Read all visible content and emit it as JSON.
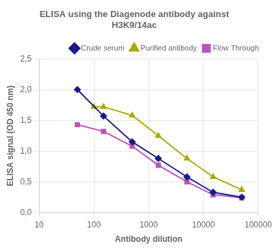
{
  "chart_data": {
    "type": "line",
    "title": "ELISA using the Diagenode antibody against\nH3K9/14ac",
    "xlabel": "Antibody dilution",
    "ylabel": "ELISA signal (OD 450 nm)",
    "log": "x",
    "xlim": [
      10,
      100000
    ],
    "ylim": [
      0.0,
      2.5
    ],
    "xticks": [
      10,
      100,
      1000,
      10000,
      100000
    ],
    "yticks": [
      {
        "value": 0.0,
        "label": "0,0"
      },
      {
        "value": 0.5,
        "label": "0,5"
      },
      {
        "value": 1.0,
        "label": "1,0"
      },
      {
        "value": 1.5,
        "label": "1,5"
      },
      {
        "value": 2.0,
        "label": "2,0"
      },
      {
        "value": 2.5,
        "label": "2,5"
      }
    ],
    "grid": true,
    "legend": "upper right",
    "series": [
      {
        "name": "Crude serum",
        "color": "#1A1A8C",
        "marker": "diamond",
        "x": [
          50,
          150,
          500,
          1500,
          5000,
          15000,
          50000
        ],
        "values": [
          2.0,
          1.57,
          1.15,
          0.88,
          0.58,
          0.33,
          0.25
        ]
      },
      {
        "name": "Purified antibody",
        "color": "#AAAA00",
        "marker": "triangle",
        "x": [
          100,
          150,
          500,
          1500,
          5000,
          15000,
          50000
        ],
        "values": [
          1.72,
          1.72,
          1.58,
          1.25,
          0.88,
          0.58,
          0.37
        ]
      },
      {
        "name": "Flow Through",
        "color": "#BB55BB",
        "marker": "square",
        "x": [
          50,
          150,
          500,
          1500,
          5000,
          15000,
          50000
        ],
        "values": [
          1.43,
          1.32,
          1.08,
          0.77,
          0.5,
          0.29,
          0.24
        ]
      }
    ]
  }
}
